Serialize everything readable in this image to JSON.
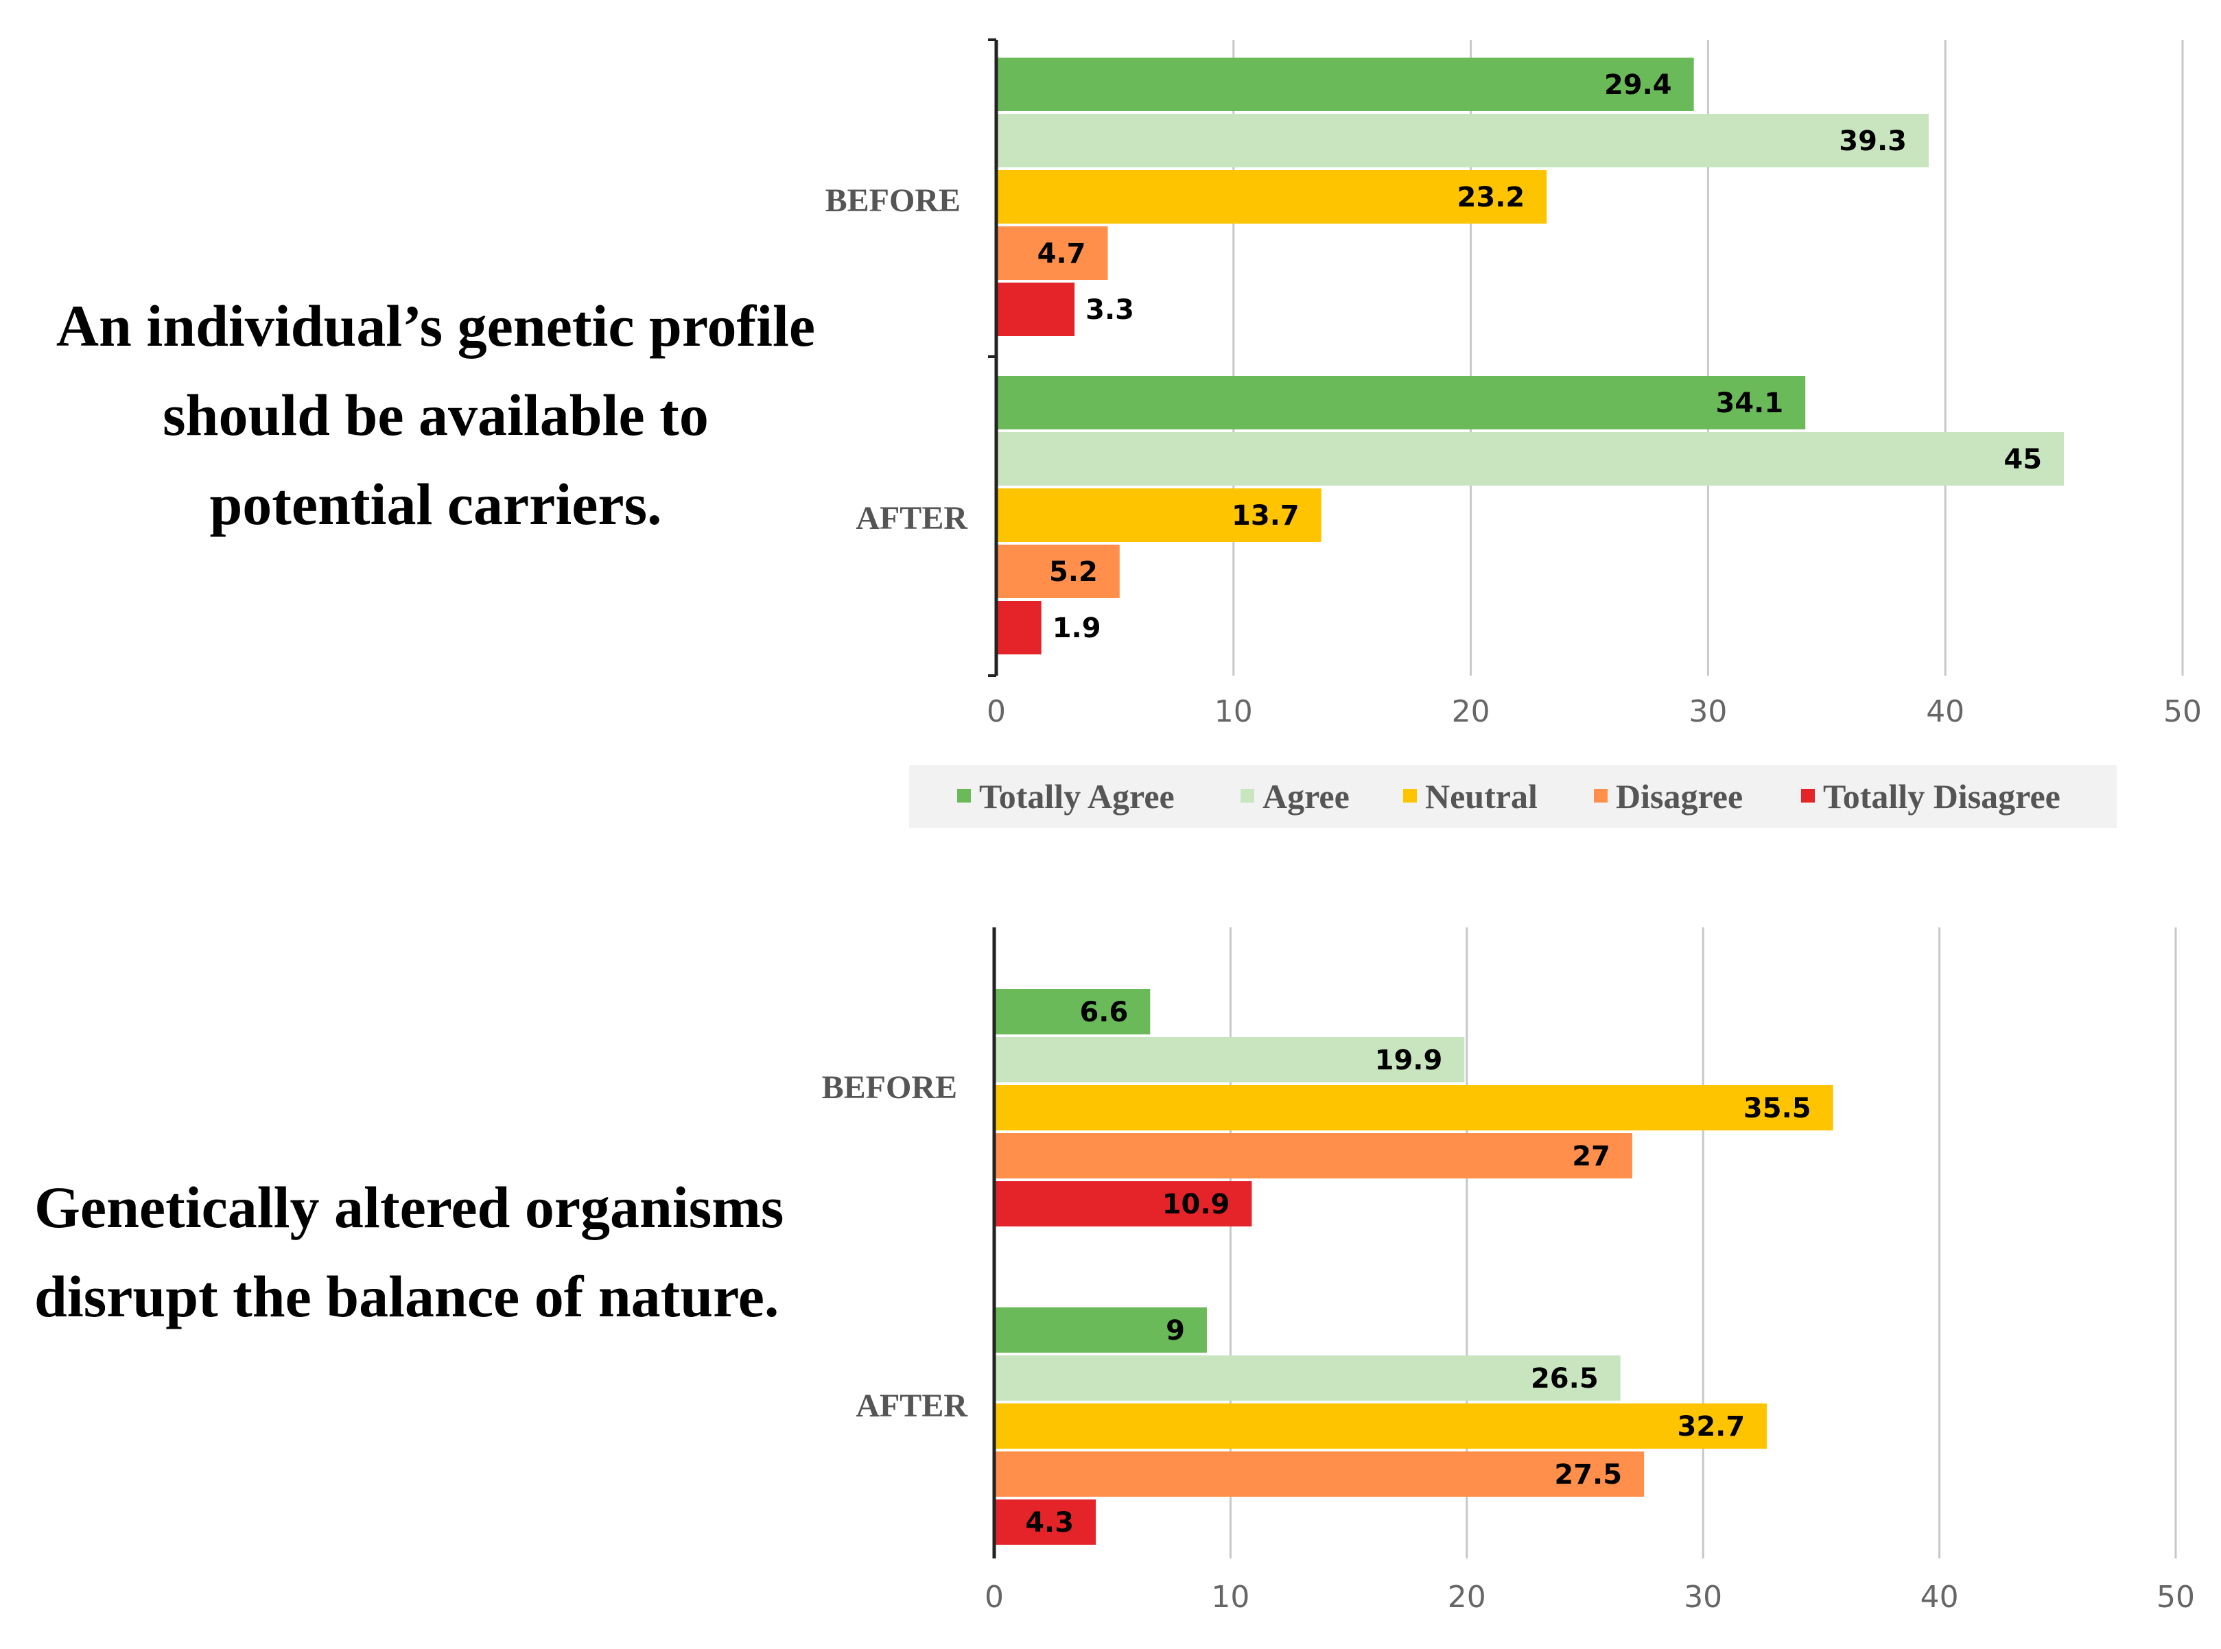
{
  "statements": [
    {
      "lines": [
        "An individual’s genetic profile",
        "should be available to",
        "potential carriers."
      ]
    },
    {
      "lines": [
        "Genetically altered organisms",
        "disrupt the balance of nature."
      ]
    }
  ],
  "legend": [
    {
      "name": "Totally Agree",
      "color": "#6aba5a"
    },
    {
      "name": "Agree",
      "color": "#c8e5c0"
    },
    {
      "name": "Neutral",
      "color": "#ffc400"
    },
    {
      "name": "Disagree",
      "color": "#ff8f4a"
    },
    {
      "name": "Totally Disagree",
      "color": "#e5242a"
    }
  ],
  "chart_data": [
    {
      "type": "bar",
      "orientation": "horizontal",
      "title": "An individual’s genetic profile should be available to potential carriers.",
      "categories": [
        "BEFORE",
        "AFTER"
      ],
      "series": [
        {
          "name": "Totally Agree",
          "values": [
            29.4,
            34.1
          ]
        },
        {
          "name": "Agree",
          "values": [
            39.3,
            45
          ]
        },
        {
          "name": "Neutral",
          "values": [
            23.2,
            13.7
          ]
        },
        {
          "name": "Disagree",
          "values": [
            4.7,
            5.2
          ]
        },
        {
          "name": "Totally Disagree",
          "values": [
            3.3,
            1.9
          ]
        }
      ],
      "xticks": [
        "0",
        "10",
        "20",
        "30",
        "40",
        "50"
      ],
      "xlim": [
        0,
        50
      ],
      "grid": true,
      "legend_position": "bottom"
    },
    {
      "type": "bar",
      "orientation": "horizontal",
      "title": "Genetically altered organisms disrupt the balance of nature.",
      "categories": [
        "BEFORE",
        "AFTER"
      ],
      "series": [
        {
          "name": "Totally Agree",
          "values": [
            6.6,
            9
          ]
        },
        {
          "name": "Agree",
          "values": [
            19.9,
            26.5
          ]
        },
        {
          "name": "Neutral",
          "values": [
            35.5,
            32.7
          ]
        },
        {
          "name": "Disagree",
          "values": [
            27,
            27.5
          ]
        },
        {
          "name": "Totally Disagree",
          "values": [
            10.9,
            4.3
          ]
        }
      ],
      "xticks": [
        "0",
        "10",
        "20",
        "30",
        "40",
        "50"
      ],
      "xlim": [
        0,
        50
      ],
      "grid": true,
      "legend_position": "none"
    }
  ]
}
